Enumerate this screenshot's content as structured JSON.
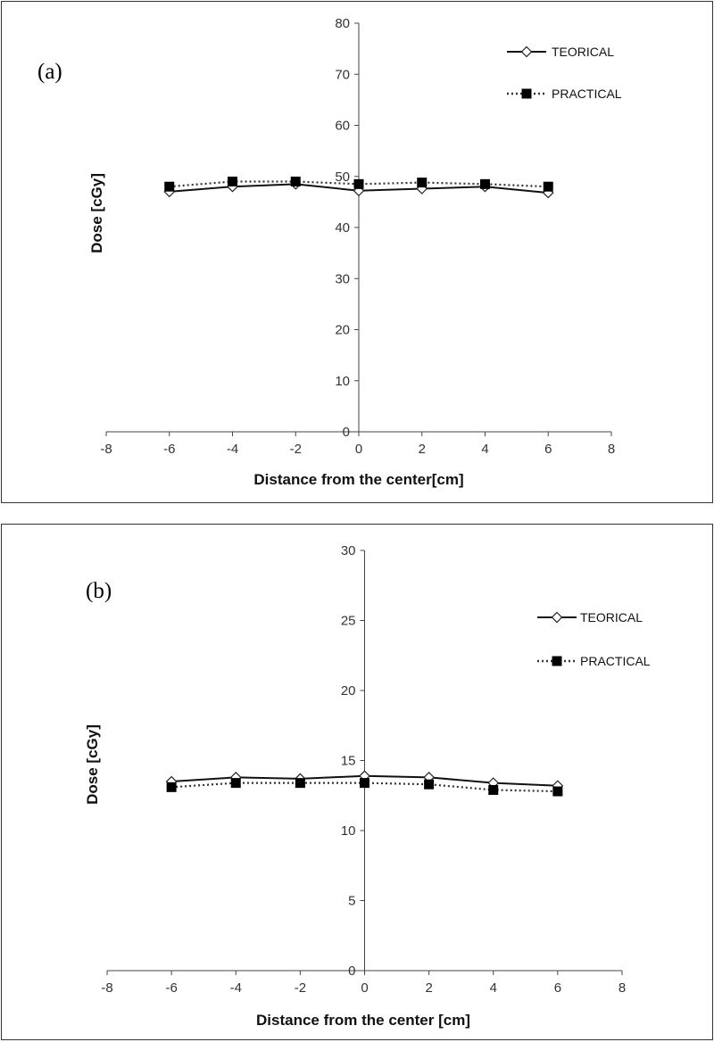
{
  "chart_data": [
    {
      "panel_label": "(a)",
      "type": "line",
      "xlabel": "Distance from the center[cm]",
      "ylabel": "Dose [cGy]",
      "xlim": [
        -8,
        8
      ],
      "ylim": [
        0,
        80
      ],
      "x_ticks": [
        "-8",
        "-6",
        "-4",
        "-2",
        "0",
        "2",
        "4",
        "6",
        "8"
      ],
      "y_ticks": [
        "0",
        "10",
        "20",
        "30",
        "40",
        "50",
        "60",
        "70",
        "80"
      ],
      "legend_position": "top-right",
      "x": [
        -6,
        -4,
        -2,
        0,
        2,
        4,
        6
      ],
      "series": [
        {
          "name": "TEORICAL",
          "values": [
            47,
            48,
            48.5,
            47.2,
            47.6,
            48,
            46.8
          ],
          "line": "solid",
          "marker": "open-diamond"
        },
        {
          "name": "PRACTICAL",
          "values": [
            48,
            49,
            49,
            48.5,
            48.8,
            48.5,
            48
          ],
          "line": "dotted",
          "marker": "filled-square"
        }
      ]
    },
    {
      "panel_label": "(b)",
      "type": "line",
      "xlabel": "Distance from the center [cm]",
      "ylabel": "Dose [cGy]",
      "xlim": [
        -8,
        8
      ],
      "ylim": [
        0,
        30
      ],
      "x_ticks": [
        "-8",
        "-6",
        "-4",
        "-2",
        "0",
        "2",
        "4",
        "6",
        "8"
      ],
      "y_ticks": [
        "0",
        "5",
        "10",
        "15",
        "20",
        "25",
        "30"
      ],
      "legend_position": "top-right",
      "x": [
        -6,
        -4,
        -2,
        0,
        2,
        4,
        6
      ],
      "series": [
        {
          "name": "TEORICAL",
          "values": [
            13.5,
            13.8,
            13.7,
            13.9,
            13.8,
            13.4,
            13.2
          ],
          "line": "solid",
          "marker": "open-diamond"
        },
        {
          "name": "PRACTICAL",
          "values": [
            13.1,
            13.4,
            13.4,
            13.4,
            13.3,
            12.9,
            12.8
          ],
          "line": "dotted",
          "marker": "filled-square"
        }
      ]
    }
  ]
}
